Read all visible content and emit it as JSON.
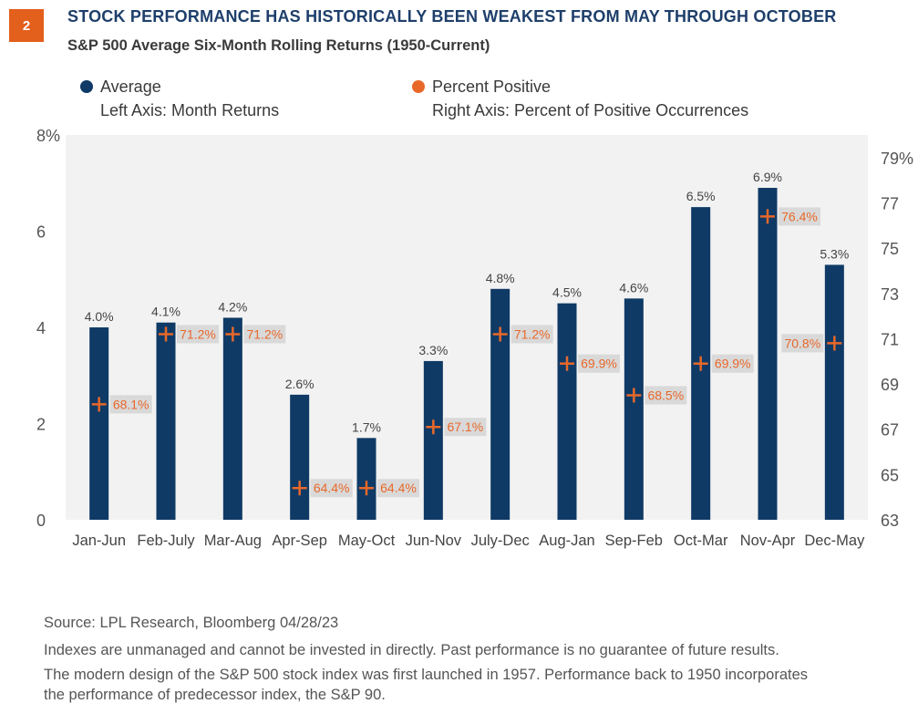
{
  "badge": "2",
  "title": "STOCK PERFORMANCE HAS HISTORICALLY BEEN WEAKEST FROM MAY THROUGH OCTOBER",
  "subtitle": "S&P 500 Average Six-Month Rolling Returns (1950-Current)",
  "legend": {
    "average_label": "Average",
    "average_sub": "Left Axis: Month Returns",
    "percent_label": "Percent Positive",
    "percent_sub": "Right Axis: Percent of Positive Occurrences"
  },
  "colors": {
    "bar": "#0f3a66",
    "marker": "#e8682a",
    "plot_bg": "#f2f2f2",
    "label_bg": "#d9d9d9",
    "badge": "#e35f1c"
  },
  "chart_data": {
    "type": "bar",
    "categories": [
      "Jan-Jun",
      "Feb-July",
      "Mar-Aug",
      "Apr-Sep",
      "May-Oct",
      "Jun-Nov",
      "July-Dec",
      "Aug-Jan",
      "Sep-Feb",
      "Oct-Mar",
      "Nov-Apr",
      "Dec-May"
    ],
    "series": [
      {
        "name": "Average",
        "axis": "left",
        "values": [
          4.0,
          4.1,
          4.2,
          2.6,
          1.7,
          3.3,
          4.8,
          4.5,
          4.6,
          6.5,
          6.9,
          5.3
        ],
        "labels": [
          "4.0%",
          "4.1%",
          "4.2%",
          "2.6%",
          "1.7%",
          "3.3%",
          "4.8%",
          "4.5%",
          "4.6%",
          "6.5%",
          "6.9%",
          "5.3%"
        ]
      },
      {
        "name": "Percent Positive",
        "axis": "right",
        "values": [
          68.1,
          71.2,
          71.2,
          64.4,
          64.4,
          67.1,
          71.2,
          69.9,
          68.5,
          69.9,
          76.4,
          70.8
        ],
        "labels": [
          "68.1%",
          "71.2%",
          "71.2%",
          "64.4%",
          "64.4%",
          "67.1%",
          "71.2%",
          "69.9%",
          "68.5%",
          "69.9%",
          "76.4%",
          "70.8%"
        ],
        "label_side": [
          "right",
          "right",
          "right",
          "right",
          "right",
          "right",
          "right",
          "right",
          "right",
          "right",
          "right",
          "left"
        ]
      }
    ],
    "left_axis": {
      "ylim": [
        0,
        8
      ],
      "ticks": [
        "0",
        "2",
        "4",
        "6",
        "8%"
      ]
    },
    "right_axis": {
      "ylim": [
        63,
        80
      ],
      "ticks": [
        "63",
        "65",
        "67",
        "69",
        "71",
        "73",
        "75",
        "77",
        "79%"
      ]
    }
  },
  "footer": {
    "source": "Source: LPL Research, Bloomberg  04/28/23",
    "line2": "Indexes are unmanaged and cannot be invested in directly. Past performance is no guarantee of future results.",
    "line3": "The modern design of the S&P 500 stock index was first launched in 1957. Performance back to 1950 incorporates",
    "line4": "the performance of predecessor index, the S&P 90."
  }
}
